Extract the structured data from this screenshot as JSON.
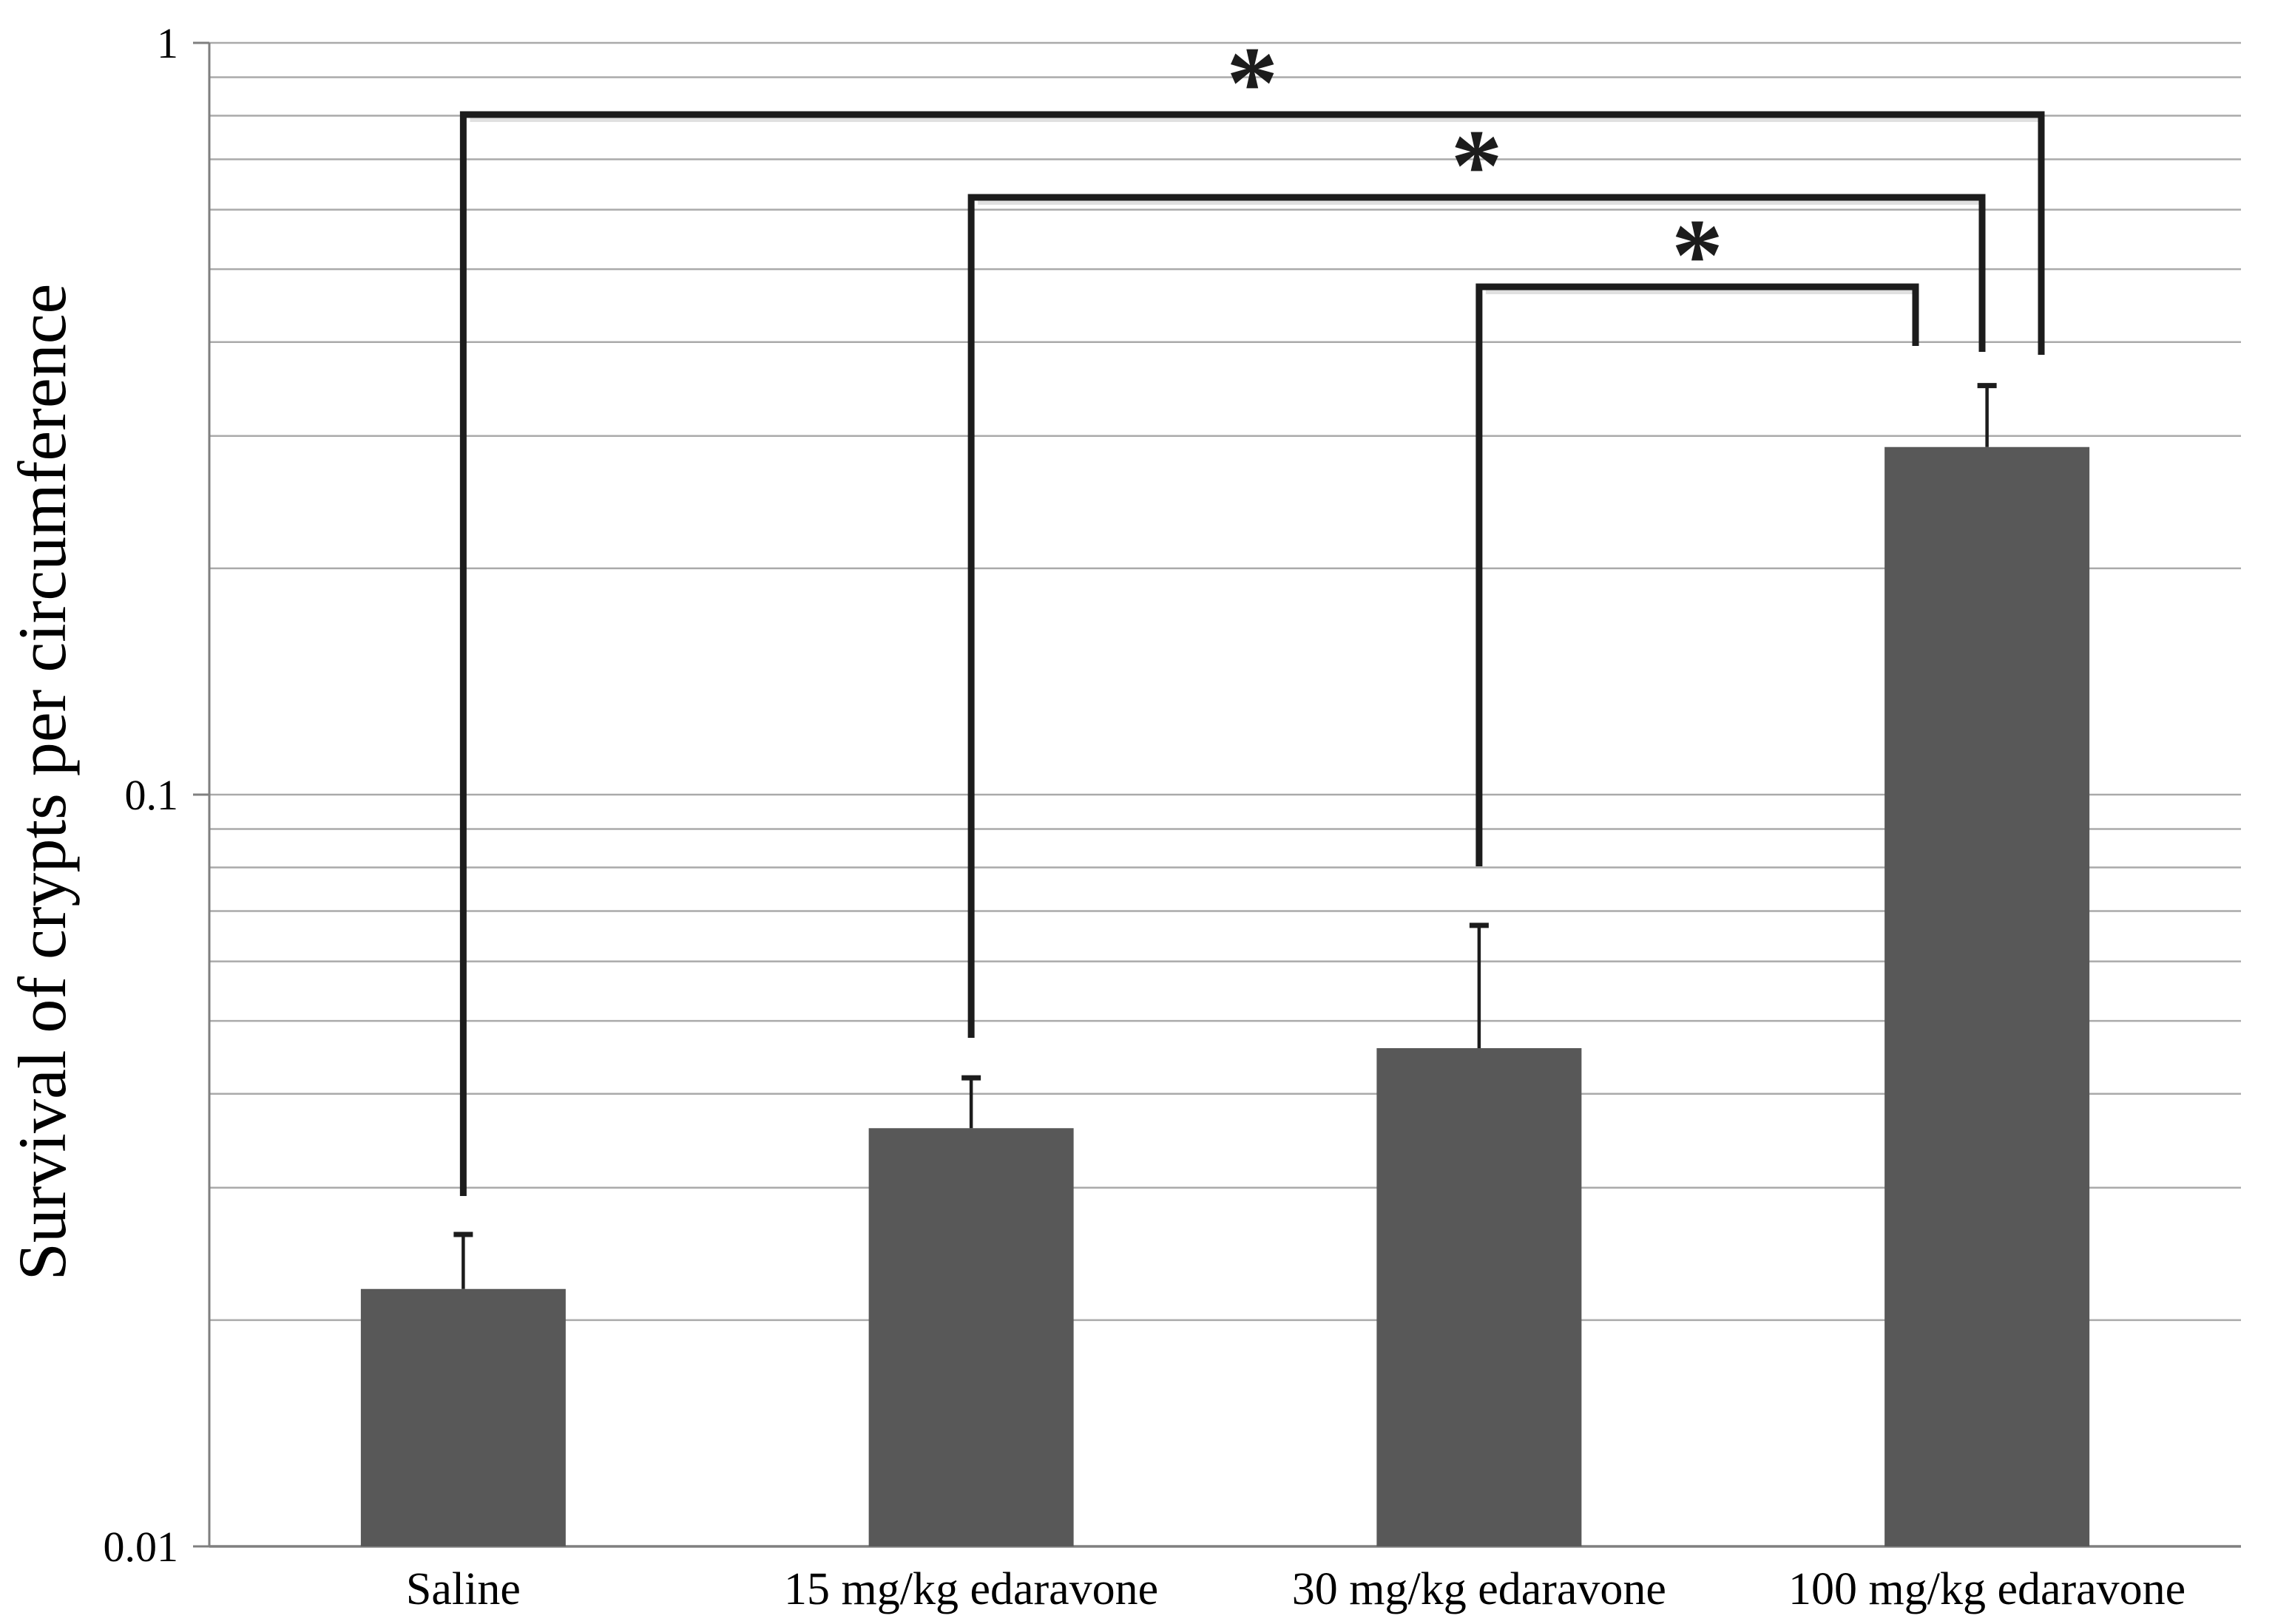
{
  "chart_data": {
    "type": "bar",
    "title": "",
    "xlabel": "",
    "ylabel": "Survival of crypts per circumference",
    "yscale": "log",
    "ylim": [
      0.01,
      1
    ],
    "ytick_labels": [
      "1",
      "0.1",
      "0.01"
    ],
    "ytick_values": [
      1,
      0.1,
      0.01
    ],
    "grid": "horizontal minor log gridlines (2-9 per decade)",
    "legend": "none",
    "categories": [
      "Saline",
      "15 mg/kg edaravone",
      "30 mg/kg edaravone",
      "100 mg/kg edaravone"
    ],
    "values": [
      0.022,
      0.036,
      0.046,
      0.29
    ],
    "error_upper": [
      0.026,
      0.042,
      0.067,
      0.35
    ],
    "significance_brackets": [
      {
        "from": "Saline",
        "to": "100 mg/kg edaravone",
        "label": "*"
      },
      {
        "from": "15 mg/kg edaravone",
        "to": "100 mg/kg edaravone",
        "label": "*"
      },
      {
        "from": "30 mg/kg edaravone",
        "to": "100 mg/kg edaravone",
        "label": "*"
      }
    ],
    "colors": {
      "bar": "#585858",
      "gridline": "#aaaaaa",
      "axis": "#7f7f7f",
      "bracket": "#1c1c1c",
      "error_bar": "#1c1c1c",
      "text": "#000000"
    }
  }
}
